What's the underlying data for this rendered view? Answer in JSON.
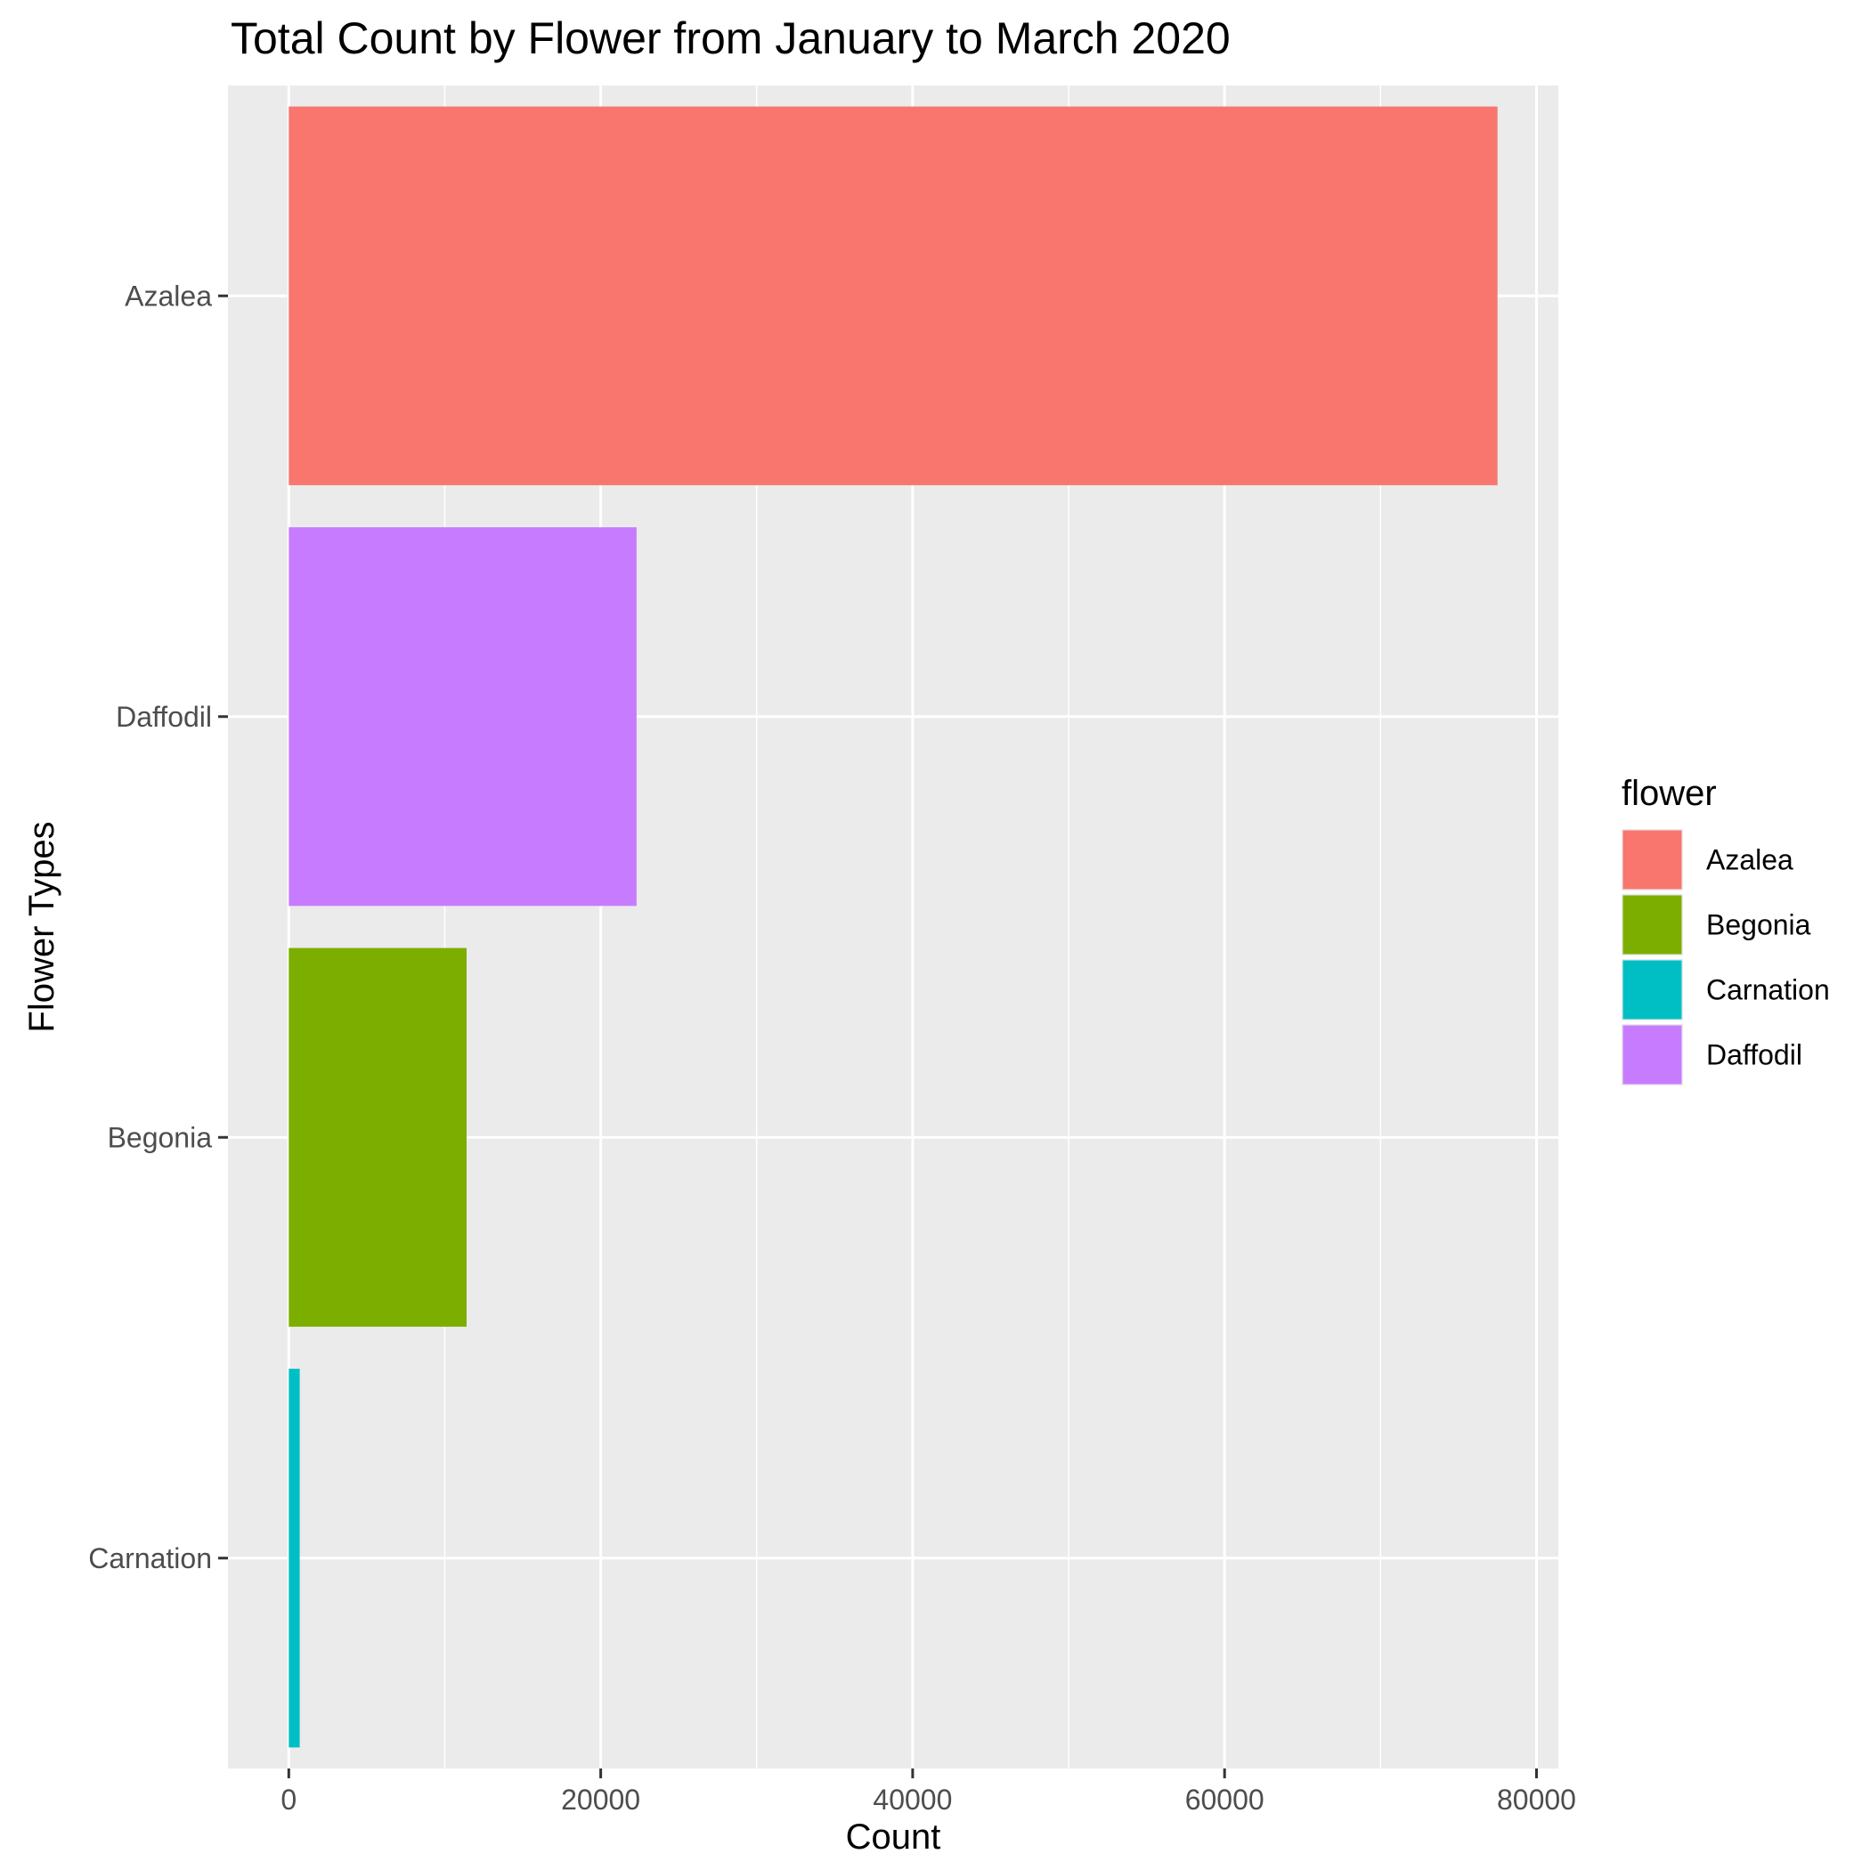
{
  "chart_data": {
    "type": "bar",
    "orientation": "horizontal",
    "title": "Total Count by Flower from January to March 2020",
    "xlabel": "Count",
    "ylabel": "Flower Types",
    "categories": [
      "Azalea",
      "Daffodil",
      "Begonia",
      "Carnation"
    ],
    "values": [
      77500,
      22300,
      11400,
      700
    ],
    "xlim": [
      -3900,
      81400
    ],
    "x_ticks": [
      0,
      20000,
      40000,
      60000,
      80000
    ],
    "grid": true,
    "legend": {
      "title": "flower",
      "position": "right",
      "entries": [
        {
          "label": "Azalea",
          "color": "#F8766D"
        },
        {
          "label": "Begonia",
          "color": "#7CAE00"
        },
        {
          "label": "Carnation",
          "color": "#00BFC4"
        },
        {
          "label": "Daffodil",
          "color": "#C77CFF"
        }
      ]
    },
    "colors": {
      "Azalea": "#F8766D",
      "Begonia": "#7CAE00",
      "Carnation": "#00BFC4",
      "Daffodil": "#C77CFF"
    },
    "panel_background": "#EBEBEB",
    "grid_color": "#FFFFFF"
  }
}
